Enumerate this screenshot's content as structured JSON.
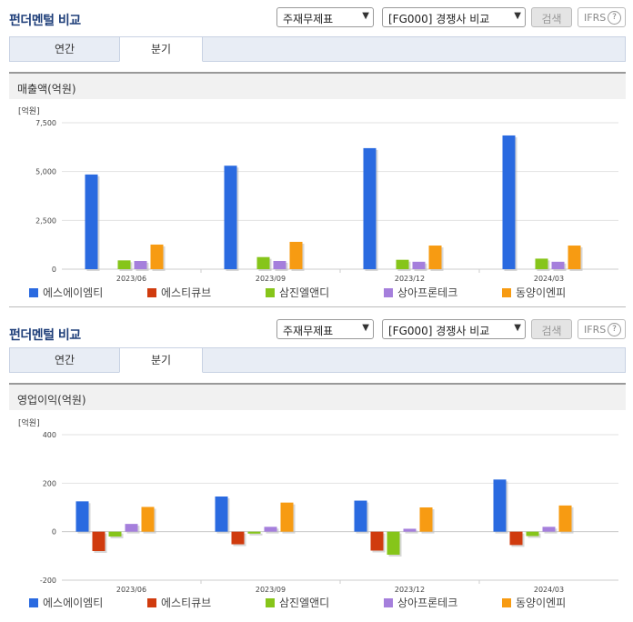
{
  "panels": [
    {
      "title": "펀더멘털 비교",
      "select_statement": "주재무제표",
      "select_compare": "[FG000] 경쟁사 비교",
      "search_label": "검색",
      "ifrs_label": "IFRS",
      "tabs": [
        "연간",
        "분기"
      ],
      "active_tab": 1,
      "section_title": "매출액(억원)"
    },
    {
      "title": "펀더멘털 비교",
      "select_statement": "주재무제표",
      "select_compare": "[FG000] 경쟁사 비교",
      "search_label": "검색",
      "ifrs_label": "IFRS",
      "tabs": [
        "연간",
        "분기"
      ],
      "active_tab": 1,
      "section_title": "영업이익(억원)"
    }
  ],
  "chart_data": [
    {
      "type": "bar",
      "unit_label": "[억원]",
      "categories": [
        "2023/06",
        "2023/09",
        "2023/12",
        "2024/03"
      ],
      "ylim": [
        0,
        7500
      ],
      "yticks": [
        0,
        2500,
        5000,
        7500
      ],
      "ytick_labels": [
        "0",
        "2,500",
        "5,000",
        "7,500"
      ],
      "grid": true,
      "legend_position": "bottom",
      "series": [
        {
          "name": "에스에이엠티",
          "color": "#2a6ae0",
          "values": [
            4850,
            5300,
            6200,
            6850
          ]
        },
        {
          "name": "에스티큐브",
          "color": "#d03b0e",
          "values": [
            0,
            0,
            0,
            0
          ]
        },
        {
          "name": "삼진엘앤디",
          "color": "#86c51a",
          "values": [
            450,
            620,
            480,
            540
          ]
        },
        {
          "name": "상아프론테크",
          "color": "#a57fdc",
          "values": [
            420,
            420,
            380,
            380
          ]
        },
        {
          "name": "동양이엔피",
          "color": "#f79b12",
          "values": [
            1260,
            1400,
            1210,
            1210
          ]
        }
      ]
    },
    {
      "type": "bar",
      "unit_label": "[억원]",
      "categories": [
        "2023/06",
        "2023/09",
        "2023/12",
        "2024/03"
      ],
      "ylim": [
        -200,
        400
      ],
      "yticks": [
        -200,
        0,
        200,
        400
      ],
      "ytick_labels": [
        "-200",
        "0",
        "200",
        "400"
      ],
      "grid": true,
      "legend_position": "bottom",
      "series": [
        {
          "name": "에스에이엠티",
          "color": "#2a6ae0",
          "values": [
            125,
            145,
            128,
            215
          ]
        },
        {
          "name": "에스티큐브",
          "color": "#d03b0e",
          "values": [
            -80,
            -52,
            -78,
            -55
          ]
        },
        {
          "name": "삼진엘앤디",
          "color": "#86c51a",
          "values": [
            -20,
            -8,
            -95,
            -18
          ]
        },
        {
          "name": "상아프론테크",
          "color": "#a57fdc",
          "values": [
            32,
            20,
            12,
            20
          ]
        },
        {
          "name": "동양이엔피",
          "color": "#f79b12",
          "values": [
            102,
            120,
            100,
            108
          ]
        }
      ]
    }
  ]
}
